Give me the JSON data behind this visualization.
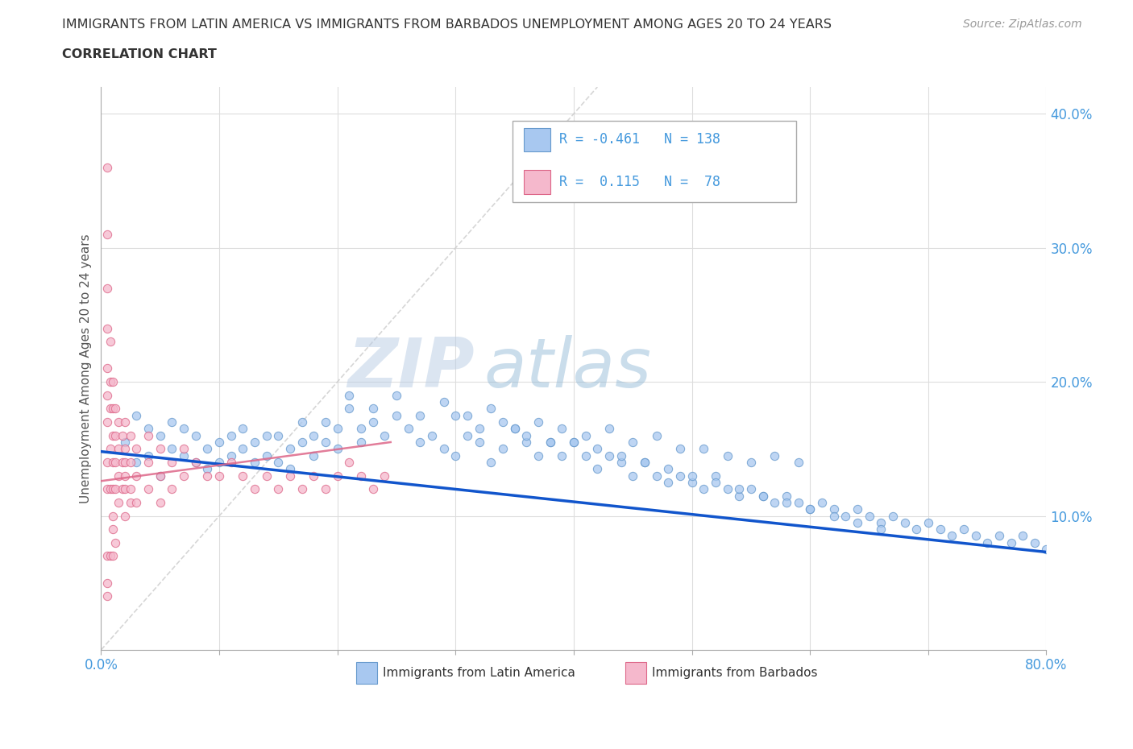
{
  "title_line1": "IMMIGRANTS FROM LATIN AMERICA VS IMMIGRANTS FROM BARBADOS UNEMPLOYMENT AMONG AGES 20 TO 24 YEARS",
  "title_line2": "CORRELATION CHART",
  "source_text": "Source: ZipAtlas.com",
  "ylabel": "Unemployment Among Ages 20 to 24 years",
  "xlim": [
    0.0,
    0.8
  ],
  "ylim": [
    0.0,
    0.42
  ],
  "xticks": [
    0.0,
    0.1,
    0.2,
    0.3,
    0.4,
    0.5,
    0.6,
    0.7,
    0.8
  ],
  "yticks": [
    0.0,
    0.1,
    0.2,
    0.3,
    0.4
  ],
  "grid_color": "#dddddd",
  "latin_color": "#a8c8f0",
  "latin_edge_color": "#6699cc",
  "barbados_color": "#f5b8cc",
  "barbados_edge_color": "#dd6688",
  "trend_latin_color": "#1155cc",
  "trend_barbados_color": "#dd6688",
  "diag_color": "#cccccc",
  "tick_color": "#4499dd",
  "title_color": "#333333",
  "source_color": "#999999",
  "ylabel_color": "#555555",
  "watermark_color": "#ccddf0",
  "legend_box_edge": "#aaaaaa",
  "latin_scatter_x": [
    0.02,
    0.03,
    0.03,
    0.04,
    0.04,
    0.05,
    0.05,
    0.06,
    0.06,
    0.07,
    0.07,
    0.08,
    0.08,
    0.09,
    0.09,
    0.1,
    0.1,
    0.11,
    0.11,
    0.12,
    0.12,
    0.13,
    0.13,
    0.14,
    0.14,
    0.15,
    0.15,
    0.16,
    0.16,
    0.17,
    0.17,
    0.18,
    0.18,
    0.19,
    0.19,
    0.2,
    0.2,
    0.21,
    0.22,
    0.22,
    0.23,
    0.24,
    0.25,
    0.26,
    0.27,
    0.28,
    0.29,
    0.3,
    0.31,
    0.32,
    0.33,
    0.34,
    0.35,
    0.36,
    0.37,
    0.38,
    0.39,
    0.4,
    0.41,
    0.42,
    0.43,
    0.44,
    0.45,
    0.46,
    0.47,
    0.48,
    0.49,
    0.5,
    0.51,
    0.52,
    0.53,
    0.54,
    0.55,
    0.56,
    0.57,
    0.58,
    0.59,
    0.6,
    0.61,
    0.62,
    0.63,
    0.64,
    0.65,
    0.66,
    0.67,
    0.68,
    0.69,
    0.7,
    0.71,
    0.72,
    0.73,
    0.74,
    0.75,
    0.76,
    0.77,
    0.78,
    0.79,
    0.8,
    0.21,
    0.23,
    0.25,
    0.27,
    0.29,
    0.31,
    0.33,
    0.35,
    0.37,
    0.39,
    0.41,
    0.43,
    0.45,
    0.47,
    0.49,
    0.51,
    0.53,
    0.55,
    0.57,
    0.59,
    0.3,
    0.32,
    0.34,
    0.36,
    0.38,
    0.4,
    0.42,
    0.44,
    0.46,
    0.48,
    0.5,
    0.52,
    0.54,
    0.56,
    0.58,
    0.6,
    0.62,
    0.64,
    0.66
  ],
  "latin_scatter_y": [
    0.155,
    0.175,
    0.14,
    0.165,
    0.145,
    0.16,
    0.13,
    0.15,
    0.17,
    0.145,
    0.165,
    0.14,
    0.16,
    0.15,
    0.135,
    0.155,
    0.14,
    0.145,
    0.16,
    0.15,
    0.165,
    0.155,
    0.14,
    0.16,
    0.145,
    0.14,
    0.16,
    0.15,
    0.135,
    0.155,
    0.17,
    0.16,
    0.145,
    0.155,
    0.17,
    0.15,
    0.165,
    0.18,
    0.165,
    0.155,
    0.17,
    0.16,
    0.175,
    0.165,
    0.155,
    0.16,
    0.15,
    0.145,
    0.16,
    0.155,
    0.14,
    0.15,
    0.165,
    0.155,
    0.145,
    0.155,
    0.145,
    0.155,
    0.145,
    0.135,
    0.145,
    0.14,
    0.13,
    0.14,
    0.13,
    0.125,
    0.13,
    0.125,
    0.12,
    0.13,
    0.12,
    0.115,
    0.12,
    0.115,
    0.11,
    0.115,
    0.11,
    0.105,
    0.11,
    0.105,
    0.1,
    0.105,
    0.1,
    0.095,
    0.1,
    0.095,
    0.09,
    0.095,
    0.09,
    0.085,
    0.09,
    0.085,
    0.08,
    0.085,
    0.08,
    0.085,
    0.08,
    0.075,
    0.19,
    0.18,
    0.19,
    0.175,
    0.185,
    0.175,
    0.18,
    0.165,
    0.17,
    0.165,
    0.16,
    0.165,
    0.155,
    0.16,
    0.15,
    0.15,
    0.145,
    0.14,
    0.145,
    0.14,
    0.175,
    0.165,
    0.17,
    0.16,
    0.155,
    0.155,
    0.15,
    0.145,
    0.14,
    0.135,
    0.13,
    0.125,
    0.12,
    0.115,
    0.11,
    0.105,
    0.1,
    0.095,
    0.09
  ],
  "barbados_scatter_x": [
    0.005,
    0.005,
    0.005,
    0.005,
    0.005,
    0.005,
    0.005,
    0.005,
    0.005,
    0.005,
    0.008,
    0.008,
    0.008,
    0.008,
    0.008,
    0.01,
    0.01,
    0.01,
    0.01,
    0.01,
    0.01,
    0.01,
    0.012,
    0.012,
    0.012,
    0.012,
    0.015,
    0.015,
    0.015,
    0.015,
    0.018,
    0.018,
    0.018,
    0.02,
    0.02,
    0.02,
    0.02,
    0.02,
    0.02,
    0.025,
    0.025,
    0.025,
    0.025,
    0.03,
    0.03,
    0.03,
    0.04,
    0.04,
    0.04,
    0.05,
    0.05,
    0.05,
    0.06,
    0.06,
    0.07,
    0.07,
    0.08,
    0.09,
    0.1,
    0.11,
    0.12,
    0.13,
    0.14,
    0.15,
    0.16,
    0.17,
    0.18,
    0.19,
    0.2,
    0.21,
    0.22,
    0.23,
    0.24,
    0.005,
    0.008,
    0.01,
    0.012,
    0.005
  ],
  "barbados_scatter_y": [
    0.36,
    0.31,
    0.27,
    0.24,
    0.21,
    0.19,
    0.17,
    0.14,
    0.12,
    0.07,
    0.23,
    0.2,
    0.18,
    0.15,
    0.12,
    0.2,
    0.18,
    0.16,
    0.14,
    0.12,
    0.1,
    0.09,
    0.18,
    0.16,
    0.14,
    0.12,
    0.17,
    0.15,
    0.13,
    0.11,
    0.16,
    0.14,
    0.12,
    0.17,
    0.15,
    0.14,
    0.13,
    0.12,
    0.1,
    0.16,
    0.14,
    0.12,
    0.11,
    0.15,
    0.13,
    0.11,
    0.16,
    0.14,
    0.12,
    0.15,
    0.13,
    0.11,
    0.14,
    0.12,
    0.15,
    0.13,
    0.14,
    0.13,
    0.13,
    0.14,
    0.13,
    0.12,
    0.13,
    0.12,
    0.13,
    0.12,
    0.13,
    0.12,
    0.13,
    0.14,
    0.13,
    0.12,
    0.13,
    0.05,
    0.07,
    0.07,
    0.08,
    0.04
  ]
}
